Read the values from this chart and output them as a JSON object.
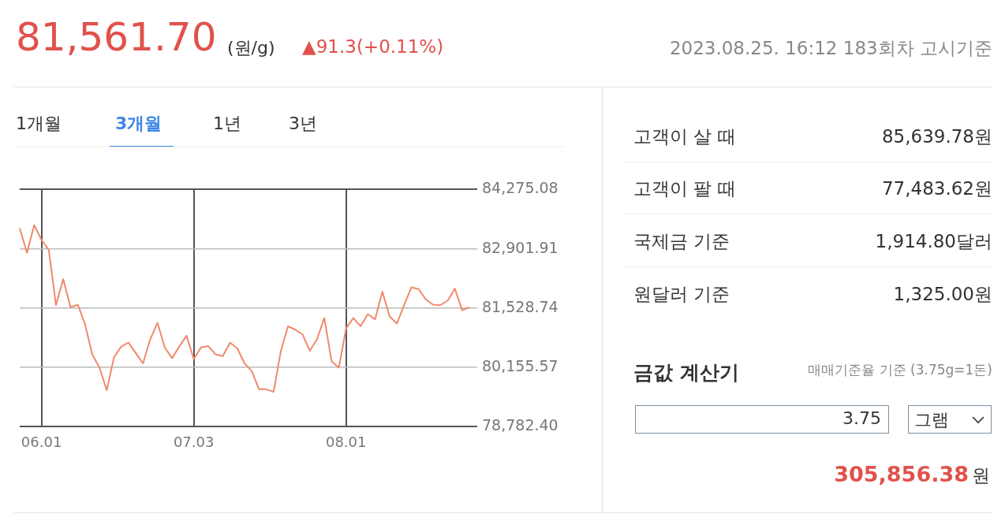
{
  "chart_data": {
    "type": "line",
    "title": "81,561.70",
    "subtitle": "(원/g)",
    "annotations": [
      "▲91.3(+0.11%)",
      "2023.08.25. 16:12 183회차 고시기준",
      "1개월",
      "3개월",
      "1년",
      "3년",
      "고객이 살 때",
      "85,639.78원",
      "고객이 팔 때",
      "77,483.62원",
      "국제금 기준",
      "1,914.80달러",
      "원달러 기준",
      "1,325.00원",
      "금값 계산기",
      "매매기준율 기준 (3.75g=1돈)",
      "3.75",
      "그램",
      "305,856.38",
      "원"
    ],
    "categories": [
      null,
      null,
      null,
      "06.01",
      null,
      null,
      null,
      null,
      null,
      null,
      null,
      null,
      null,
      null,
      null,
      null,
      null,
      null,
      null,
      null,
      null,
      null,
      null,
      null,
      "07.03",
      null,
      null,
      null,
      null,
      null,
      null,
      null,
      null,
      null,
      null,
      null,
      null,
      null,
      null,
      null,
      null,
      null,
      null,
      null,
      null,
      "08.01",
      null,
      null,
      null,
      null,
      null,
      null,
      null,
      null,
      null,
      null,
      null,
      null,
      null,
      null,
      null,
      null,
      null
    ],
    "series": [
      {
        "color": "#ef8a6c",
        "values": [
          83380,
          82810,
          83450,
          83110,
          82880,
          81600,
          82200,
          81550,
          81610,
          81160,
          80460,
          80150,
          79630,
          80390,
          80640,
          80730,
          80490,
          80250,
          80810,
          81190,
          80620,
          80370,
          80640,
          80890,
          80350,
          80620,
          80650,
          80460,
          80420,
          80730,
          80600,
          80250,
          80070,
          79650,
          79650,
          79590,
          80530,
          81110,
          81030,
          80920,
          80540,
          80810,
          81300,
          80300,
          80150,
          81060,
          81300,
          81110,
          81390,
          81270,
          81910,
          81340,
          81170,
          81600,
          82010,
          81970,
          81730,
          81610,
          81600,
          81700,
          81980,
          81480,
          81550
        ]
      }
    ],
    "ylim": [
      78782.4,
      84275.08
    ],
    "yticks": [
      {
        "value": 78782.4,
        "label": "78,782.40"
      },
      {
        "value": 80155.57,
        "label": "80,155.57"
      },
      {
        "value": 81528.74,
        "label": "81,528.74"
      },
      {
        "value": 82901.91,
        "label": "82,901.91"
      },
      {
        "value": 84275.08,
        "label": "84,275.08"
      }
    ],
    "grid": true,
    "legend": false,
    "marker": "none",
    "line_style": "solid"
  }
}
